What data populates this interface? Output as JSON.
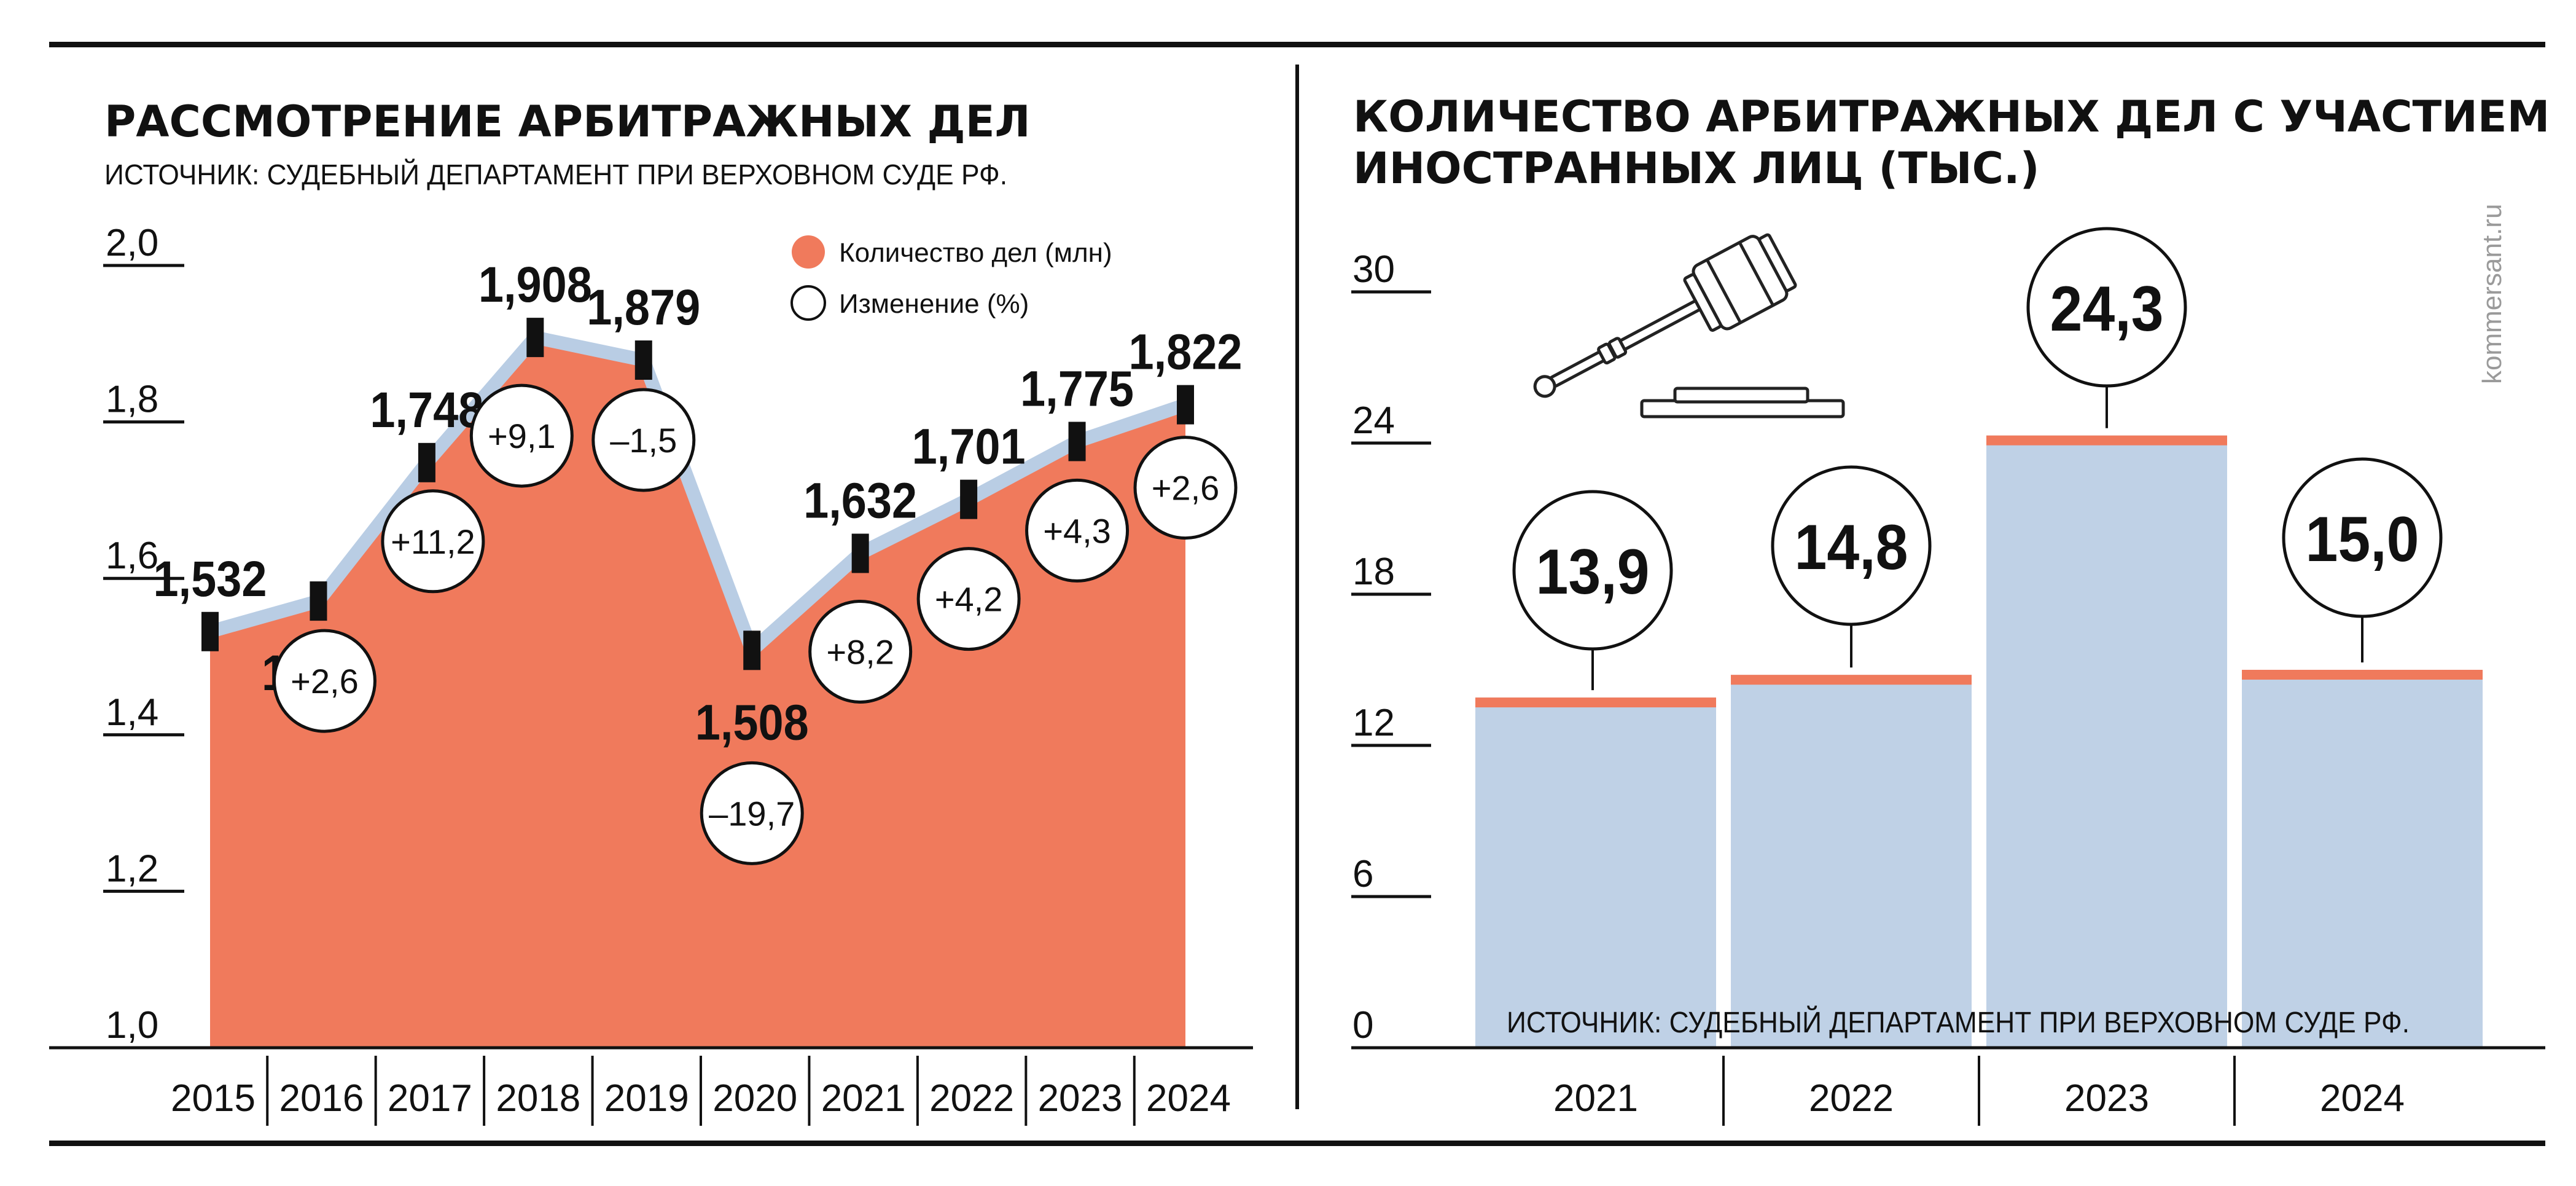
{
  "brand": "kommersant.ru",
  "colors": {
    "area": "#f07a5c",
    "area_outline": "#b9cde4",
    "bar": "#bfd1e6",
    "bar_top": "#f07a5c",
    "ink": "#111111"
  },
  "left": {
    "title": "РАССМОТРЕНИЕ АРБИТРАЖНЫХ ДЕЛ",
    "source": "ИСТОЧНИК: СУДЕБНЫЙ ДЕПАРТАМЕНТ ПРИ ВЕРХОВНОМ СУДЕ РФ.",
    "legend": {
      "cases": "Количество дел (млн)",
      "change": "Изменение (%)"
    }
  },
  "right": {
    "title_line1": "КОЛИЧЕСТВО АРБИТРАЖНЫХ ДЕЛ С УЧАСТИЕМ",
    "title_line2": "ИНОСТРАННЫХ ЛИЦ (ТЫС.)",
    "source": "ИСТОЧНИК: СУДЕБНЫЙ ДЕПАРТАМЕНТ ПРИ ВЕРХОВНОМ СУДЕ РФ.",
    "icon": "gavel-icon"
  },
  "chart_data": [
    {
      "type": "area",
      "title": "РАССМОТРЕНИЕ АРБИТРАЖНЫХ ДЕЛ",
      "categories": [
        "2015",
        "2016",
        "2017",
        "2018",
        "2019",
        "2020",
        "2021",
        "2022",
        "2023",
        "2024"
      ],
      "series": [
        {
          "name": "Количество дел (млн)",
          "values": [
            1.532,
            1.571,
            1.748,
            1.908,
            1.879,
            1.508,
            1.632,
            1.701,
            1.775,
            1.822
          ],
          "labels": [
            "1,532",
            "1,571",
            "1,748",
            "1,908",
            "1,879",
            "1,508",
            "1,632",
            "1,701",
            "1,775",
            "1,822"
          ]
        },
        {
          "name": "Изменение (%)",
          "values": [
            null,
            2.6,
            11.2,
            9.1,
            -1.5,
            -19.7,
            8.2,
            4.2,
            4.3,
            2.6
          ],
          "labels": [
            "",
            "+2,6",
            "+11,2",
            "+9,1",
            "–1,5",
            "–19,7",
            "+8,2",
            "+4,2",
            "+4,3",
            "+2,6"
          ]
        }
      ],
      "ylim": [
        1.0,
        2.0
      ],
      "yticks": [
        1.0,
        1.2,
        1.4,
        1.6,
        1.8,
        2.0
      ],
      "ytick_labels": [
        "1,0",
        "1,2",
        "1,4",
        "1,6",
        "1,8",
        "2,0"
      ],
      "legend_position": "top-right"
    },
    {
      "type": "bar",
      "title": "КОЛИЧЕСТВО АРБИТРАЖНЫХ ДЕЛ С УЧАСТИЕМ ИНОСТРАННЫХ ЛИЦ (ТЫС.)",
      "categories": [
        "2021",
        "2022",
        "2023",
        "2024"
      ],
      "values": [
        13.9,
        14.8,
        24.3,
        15.0
      ],
      "labels": [
        "13,9",
        "14,8",
        "24,3",
        "15,0"
      ],
      "ylim": [
        0,
        30
      ],
      "yticks": [
        0,
        6,
        12,
        18,
        24,
        30
      ],
      "ytick_labels": [
        "0",
        "6",
        "12",
        "18",
        "24",
        "30"
      ]
    }
  ]
}
